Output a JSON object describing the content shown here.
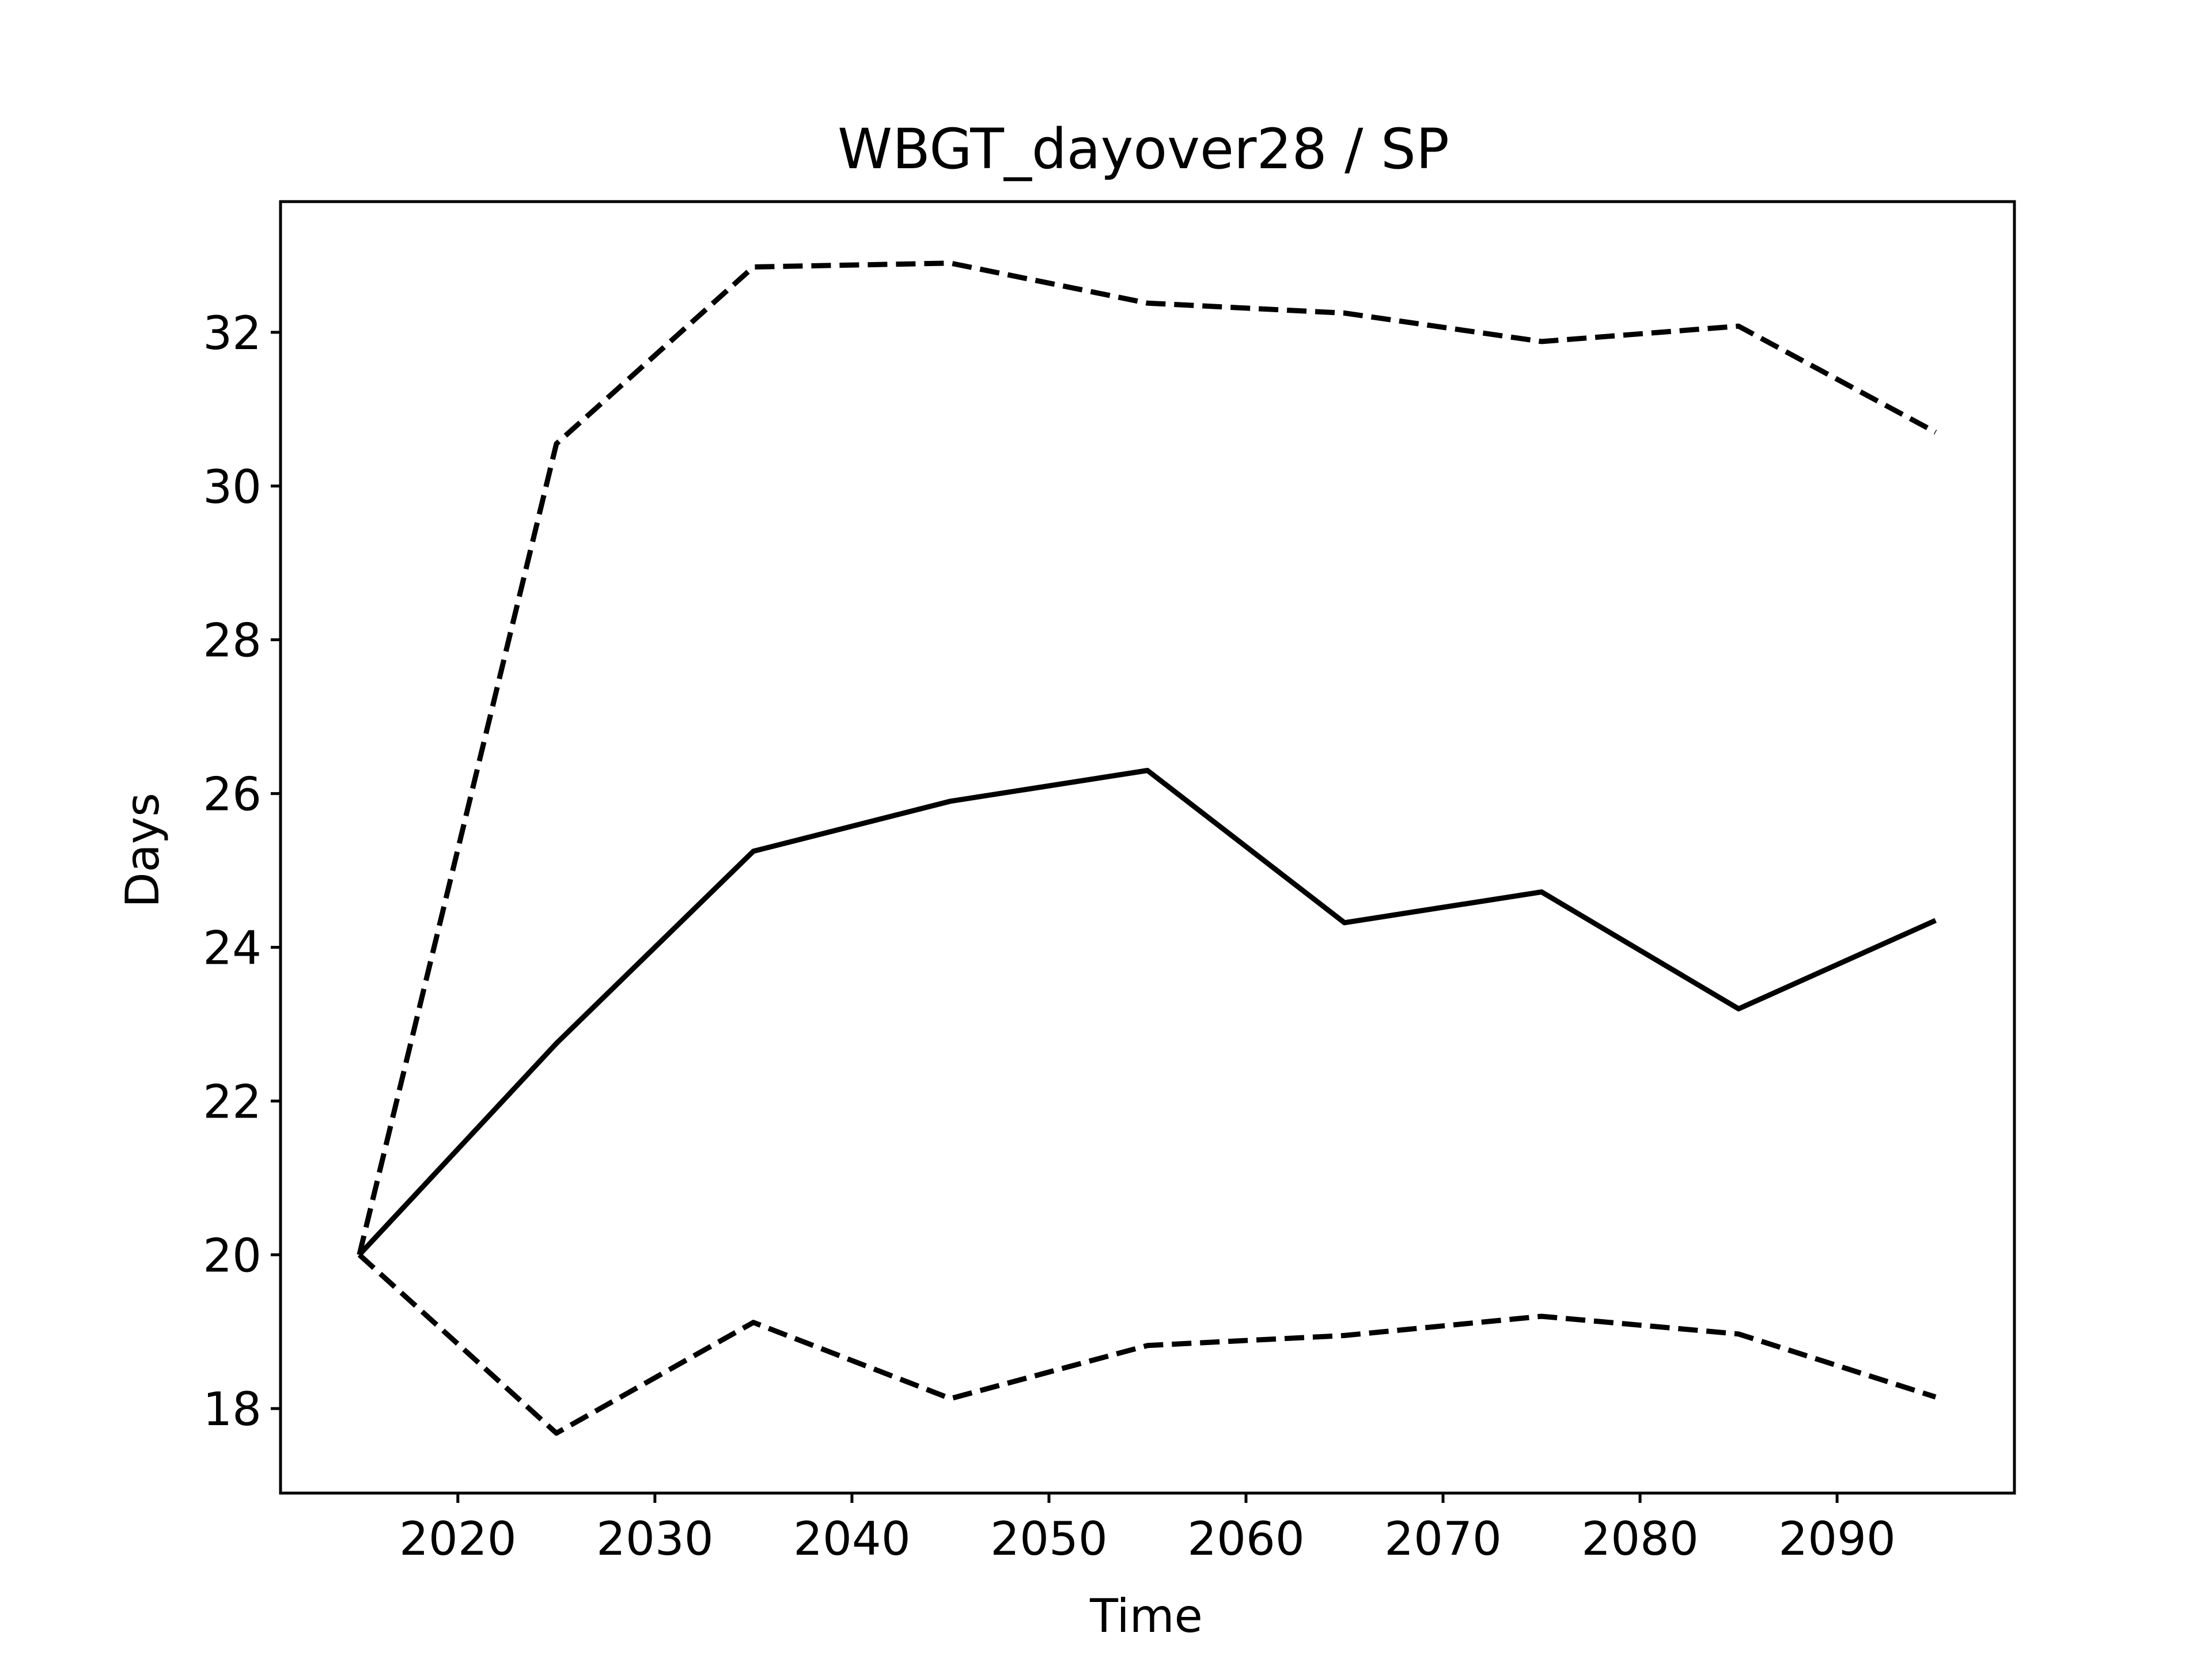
{
  "chart_data": {
    "type": "line",
    "title": "WBGT_dayover28 / SP",
    "xlabel": "Time",
    "ylabel": "Days",
    "x": [
      2015,
      2025,
      2035,
      2045,
      2055,
      2065,
      2075,
      2085,
      2095
    ],
    "series": [
      {
        "style": "solid",
        "color": "#000000",
        "values": [
          20.0,
          22.75,
          25.25,
          25.9,
          26.3,
          24.32,
          24.72,
          23.2,
          24.35
        ]
      },
      {
        "style": "dashed",
        "color": "#000000",
        "values": [
          20.0,
          30.55,
          32.85,
          32.9,
          32.38,
          32.25,
          31.88,
          32.08,
          30.7
        ]
      },
      {
        "style": "dashed",
        "color": "#000000",
        "values": [
          20.0,
          17.68,
          19.12,
          18.13,
          18.82,
          18.95,
          19.2,
          18.97,
          18.15
        ]
      }
    ],
    "xlim": [
      2011,
      2099
    ],
    "ylim": [
      16.9,
      33.7
    ],
    "xticks": [
      2020,
      2030,
      2040,
      2050,
      2060,
      2070,
      2080,
      2090
    ],
    "yticks": [
      18,
      20,
      22,
      24,
      26,
      28,
      30,
      32
    ],
    "xtick_labels": [
      "2020",
      "2030",
      "2040",
      "2050",
      "2060",
      "2070",
      "2080",
      "2090"
    ],
    "ytick_labels": [
      "18",
      "20",
      "22",
      "24",
      "26",
      "28",
      "30",
      "32"
    ],
    "grid": false,
    "legend": false
  }
}
